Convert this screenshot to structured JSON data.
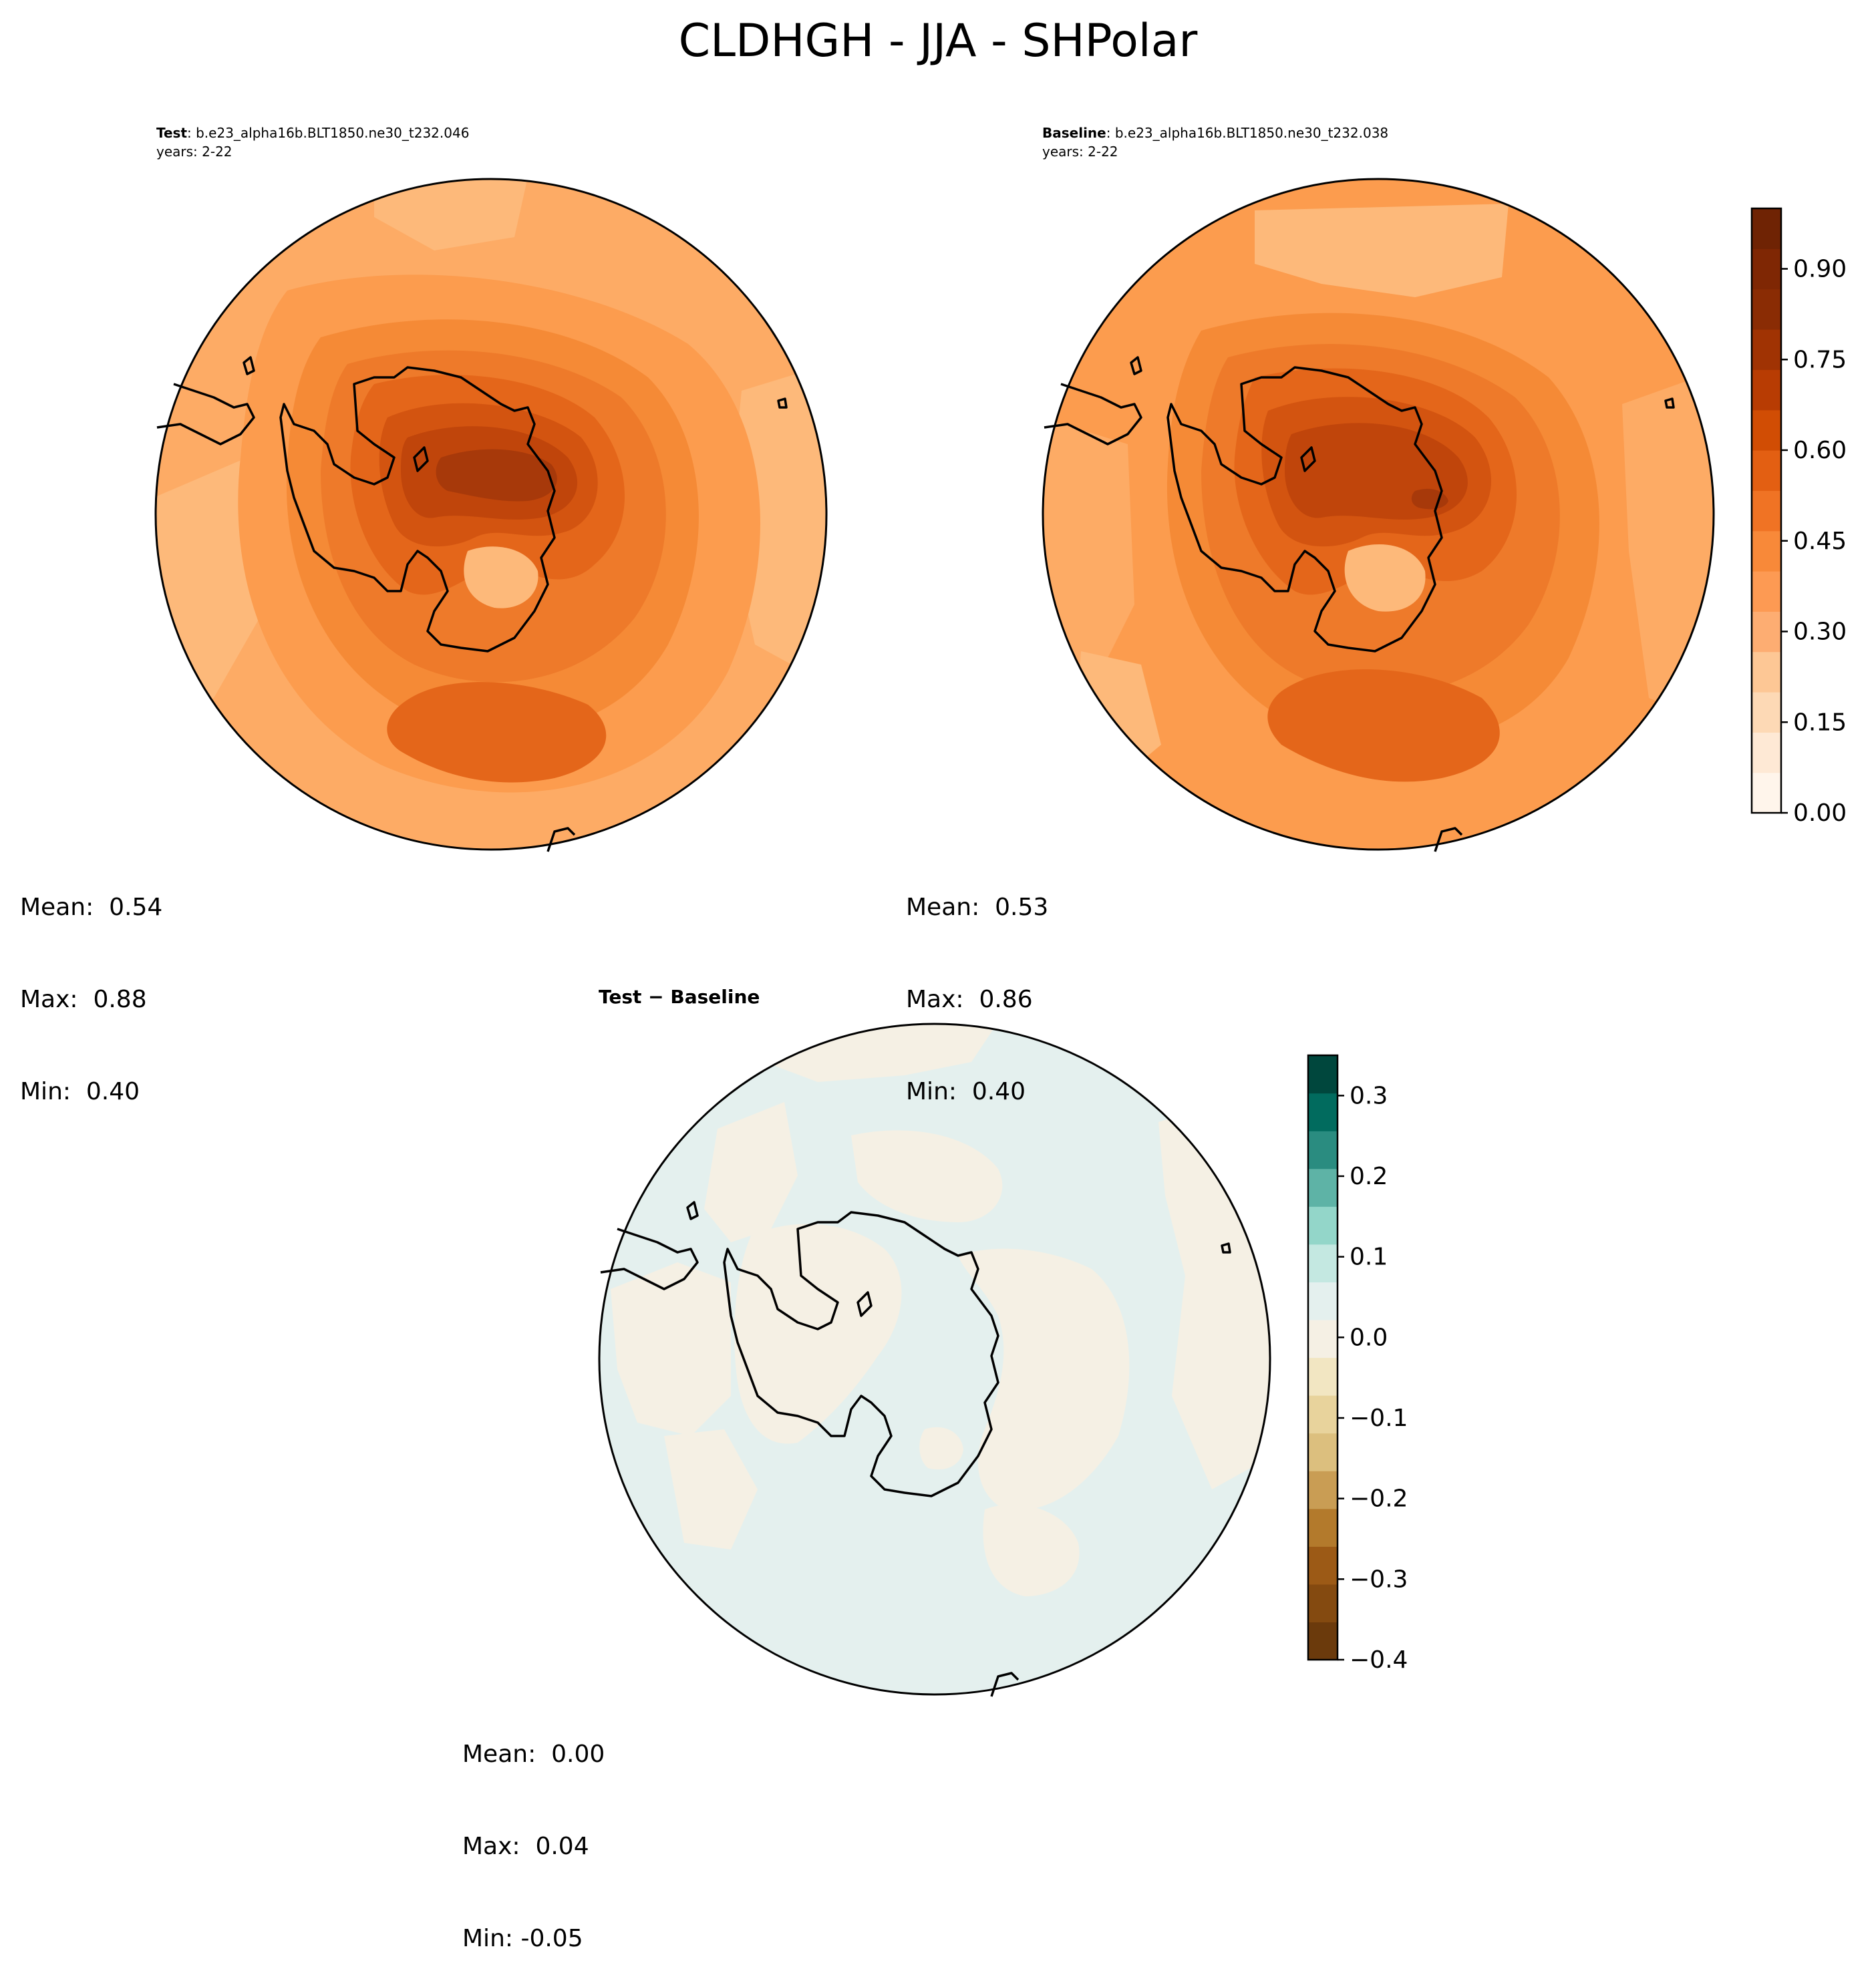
{
  "figure": {
    "title": "CLDHGH - JJA - SHPolar"
  },
  "panels": {
    "test": {
      "label_bold": "Test",
      "label_rest": ": b.e23_alpha16b.BLT1850.ne30_t232.046",
      "years": "years: 2-22",
      "stats": {
        "mean": "Mean:  0.54",
        "max": "Max:  0.88",
        "min": "Min:  0.40"
      }
    },
    "baseline": {
      "label_bold": "Baseline",
      "label_rest": ": b.e23_alpha16b.BLT1850.ne30_t232.038",
      "years": "years: 2-22",
      "stats": {
        "mean": "Mean:  0.53",
        "max": "Max:  0.86",
        "min": "Min:  0.40"
      }
    },
    "diff": {
      "title": "Test − Baseline",
      "stats": {
        "mean": "Mean:  0.00",
        "max": "Max:  0.04",
        "min": "Min: -0.05"
      }
    }
  },
  "colorbars": {
    "main": {
      "ticks": [
        "0.00",
        "0.15",
        "0.30",
        "0.45",
        "0.60",
        "0.75",
        "0.90"
      ],
      "tick_values": [
        0.0,
        0.15,
        0.3,
        0.45,
        0.6,
        0.75,
        0.9
      ],
      "range": [
        0.0,
        1.0
      ],
      "colors": [
        "#fff5eb",
        "#fee9d5",
        "#fdd9b5",
        "#fdc795",
        "#fdad72",
        "#fd9a53",
        "#f88939",
        "#f07324",
        "#e35f12",
        "#d14d04",
        "#b83c03",
        "#a03303",
        "#8a2c04",
        "#7f2704",
        "#6f2304"
      ]
    },
    "diff": {
      "ticks": [
        "−0.4",
        "−0.3",
        "−0.2",
        "−0.1",
        "0.0",
        "0.1",
        "0.2",
        "0.3"
      ],
      "tick_values": [
        -0.4,
        -0.3,
        -0.2,
        -0.1,
        0.0,
        0.1,
        0.2,
        0.3
      ],
      "range": [
        -0.4,
        0.35
      ],
      "colors": [
        "#6b3a0c",
        "#844a10",
        "#9c5a16",
        "#b37a2c",
        "#c99d54",
        "#dcbf7e",
        "#e8d39c",
        "#f2e6c2",
        "#f5f0e4",
        "#e4f0ee",
        "#c4e8e1",
        "#93d6c9",
        "#5eb3a6",
        "#2a8c80",
        "#016b5e",
        "#00473d"
      ]
    }
  },
  "map_colors": {
    "outer": "#fdab65",
    "ring1": "#fc9c4e",
    "ring2": "#f58a36",
    "ring3": "#ee7a2a",
    "ring4": "#e4661a",
    "ring5": "#d35410",
    "ring6": "#c0450b",
    "core": "#a7390a",
    "patch_light": "#fdb97a",
    "diff_pos": "#e4f0ee",
    "diff_neg": "#f5f0e4"
  }
}
